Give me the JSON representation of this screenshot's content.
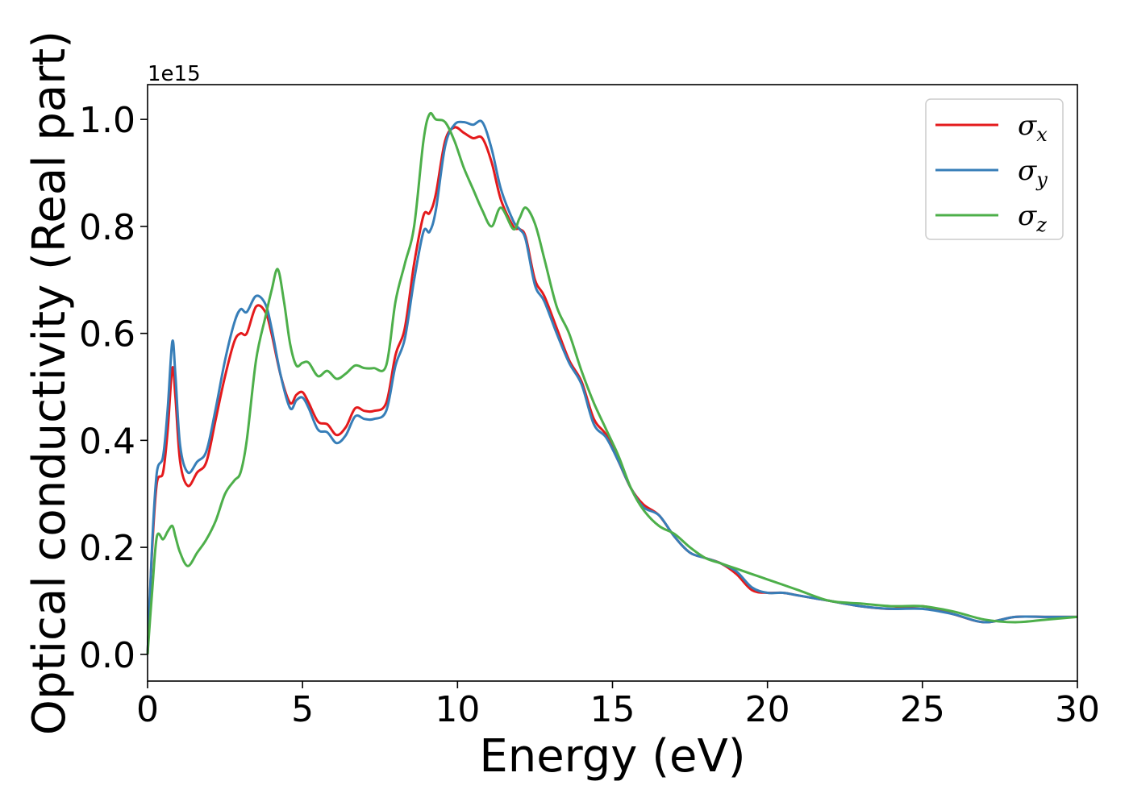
{
  "chart_data": {
    "type": "line",
    "xlabel": "Energy (eV)",
    "ylabel": "Optical conductivity (Real part)",
    "y_offset_label": "1e15",
    "xlim": [
      0,
      30
    ],
    "ylim": [
      -0.05,
      1.065
    ],
    "xticks": [
      0,
      5,
      10,
      15,
      20,
      25,
      30
    ],
    "xtick_labels": [
      "0",
      "5",
      "10",
      "15",
      "20",
      "25",
      "30"
    ],
    "yticks": [
      0.0,
      0.2,
      0.4,
      0.6,
      0.8,
      1.0
    ],
    "ytick_labels": [
      "0.0",
      "0.2",
      "0.4",
      "0.6",
      "0.8",
      "1.0"
    ],
    "grid": false,
    "legend_position": "top-right",
    "series": [
      {
        "name": "σx",
        "label_base": "σ",
        "label_sub": "x",
        "color": "#e41a1c",
        "x": [
          0,
          0.15,
          0.3,
          0.5,
          0.65,
          0.8,
          0.9,
          1.05,
          1.3,
          1.6,
          1.9,
          2.2,
          2.5,
          2.8,
          3.0,
          3.2,
          3.5,
          3.8,
          4.0,
          4.3,
          4.6,
          4.8,
          5.0,
          5.2,
          5.5,
          5.8,
          6.1,
          6.4,
          6.7,
          7.0,
          7.3,
          7.7,
          8.0,
          8.3,
          8.6,
          8.9,
          9.1,
          9.3,
          9.6,
          9.9,
          10.2,
          10.5,
          10.8,
          11.1,
          11.4,
          11.8,
          12.0,
          12.2,
          12.5,
          12.8,
          13.2,
          13.6,
          14.0,
          14.4,
          14.8,
          15.2,
          15.6,
          16.0,
          16.5,
          17.0,
          17.5,
          18.0,
          18.5,
          19.0,
          19.5,
          20.0,
          20.5,
          21.0,
          22.0,
          23.0,
          24.0,
          25.0,
          26.0,
          27.0,
          28.0,
          29.0,
          30.0
        ],
        "values": [
          0.0,
          0.2,
          0.32,
          0.34,
          0.42,
          0.535,
          0.48,
          0.36,
          0.315,
          0.34,
          0.36,
          0.44,
          0.52,
          0.585,
          0.6,
          0.6,
          0.65,
          0.64,
          0.6,
          0.52,
          0.47,
          0.485,
          0.49,
          0.47,
          0.435,
          0.43,
          0.41,
          0.425,
          0.46,
          0.455,
          0.455,
          0.47,
          0.56,
          0.61,
          0.73,
          0.82,
          0.825,
          0.86,
          0.96,
          0.985,
          0.975,
          0.965,
          0.965,
          0.92,
          0.85,
          0.8,
          0.795,
          0.78,
          0.7,
          0.67,
          0.61,
          0.55,
          0.51,
          0.44,
          0.41,
          0.36,
          0.31,
          0.28,
          0.26,
          0.22,
          0.19,
          0.18,
          0.17,
          0.15,
          0.12,
          0.115,
          0.115,
          0.11,
          0.1,
          0.09,
          0.085,
          0.09,
          0.075,
          0.06,
          0.07,
          0.07,
          0.07
        ]
      },
      {
        "name": "σy",
        "label_base": "σ",
        "label_sub": "y",
        "color": "#377eb8",
        "x": [
          0,
          0.15,
          0.3,
          0.5,
          0.65,
          0.8,
          0.9,
          1.05,
          1.3,
          1.6,
          1.9,
          2.2,
          2.5,
          2.8,
          3.0,
          3.2,
          3.5,
          3.8,
          4.0,
          4.3,
          4.6,
          4.8,
          5.0,
          5.2,
          5.5,
          5.8,
          6.1,
          6.4,
          6.7,
          7.0,
          7.3,
          7.7,
          8.0,
          8.3,
          8.6,
          8.9,
          9.1,
          9.3,
          9.6,
          9.9,
          10.2,
          10.5,
          10.8,
          11.1,
          11.4,
          11.8,
          12.0,
          12.2,
          12.5,
          12.8,
          13.2,
          13.6,
          14.0,
          14.4,
          14.8,
          15.2,
          15.6,
          16.0,
          16.5,
          17.0,
          17.5,
          18.0,
          18.5,
          19.0,
          19.5,
          20.0,
          20.5,
          21.0,
          22.0,
          23.0,
          24.0,
          25.0,
          26.0,
          27.0,
          28.0,
          29.0,
          30.0
        ],
        "values": [
          0.0,
          0.21,
          0.34,
          0.37,
          0.46,
          0.585,
          0.52,
          0.39,
          0.34,
          0.36,
          0.38,
          0.46,
          0.55,
          0.62,
          0.645,
          0.64,
          0.67,
          0.655,
          0.61,
          0.52,
          0.46,
          0.475,
          0.48,
          0.46,
          0.42,
          0.415,
          0.395,
          0.41,
          0.445,
          0.44,
          0.44,
          0.455,
          0.54,
          0.59,
          0.7,
          0.79,
          0.79,
          0.83,
          0.95,
          0.99,
          0.995,
          0.99,
          0.995,
          0.945,
          0.87,
          0.81,
          0.795,
          0.775,
          0.69,
          0.66,
          0.6,
          0.545,
          0.505,
          0.43,
          0.405,
          0.36,
          0.31,
          0.275,
          0.26,
          0.22,
          0.19,
          0.18,
          0.17,
          0.155,
          0.125,
          0.115,
          0.115,
          0.11,
          0.1,
          0.09,
          0.085,
          0.085,
          0.075,
          0.06,
          0.07,
          0.07,
          0.07
        ]
      },
      {
        "name": "σz",
        "label_base": "σ",
        "label_sub": "z",
        "color": "#4daf4a",
        "x": [
          0,
          0.15,
          0.3,
          0.5,
          0.65,
          0.8,
          0.9,
          1.05,
          1.3,
          1.6,
          1.9,
          2.2,
          2.5,
          2.8,
          3.0,
          3.2,
          3.5,
          3.8,
          4.0,
          4.2,
          4.4,
          4.6,
          4.8,
          5.0,
          5.2,
          5.5,
          5.8,
          6.1,
          6.4,
          6.7,
          7.0,
          7.3,
          7.7,
          8.0,
          8.3,
          8.6,
          8.9,
          9.1,
          9.3,
          9.6,
          9.9,
          10.2,
          10.5,
          10.8,
          11.1,
          11.4,
          11.8,
          12.0,
          12.2,
          12.5,
          12.8,
          13.2,
          13.6,
          14.0,
          14.4,
          14.8,
          15.2,
          15.6,
          16.0,
          16.5,
          17.0,
          17.5,
          18.0,
          18.5,
          19.0,
          19.5,
          20.0,
          20.5,
          21.0,
          22.0,
          23.0,
          24.0,
          25.0,
          26.0,
          27.0,
          28.0,
          29.0,
          30.0
        ],
        "values": [
          0.0,
          0.12,
          0.22,
          0.215,
          0.23,
          0.24,
          0.22,
          0.19,
          0.165,
          0.19,
          0.215,
          0.25,
          0.3,
          0.325,
          0.34,
          0.4,
          0.55,
          0.63,
          0.68,
          0.72,
          0.66,
          0.58,
          0.54,
          0.545,
          0.545,
          0.52,
          0.53,
          0.515,
          0.525,
          0.54,
          0.535,
          0.535,
          0.54,
          0.66,
          0.73,
          0.8,
          0.96,
          1.01,
          1.0,
          0.995,
          0.96,
          0.91,
          0.87,
          0.83,
          0.8,
          0.835,
          0.795,
          0.815,
          0.835,
          0.805,
          0.74,
          0.65,
          0.6,
          0.53,
          0.47,
          0.42,
          0.37,
          0.31,
          0.27,
          0.24,
          0.225,
          0.2,
          0.18,
          0.17,
          0.16,
          0.15,
          0.14,
          0.13,
          0.12,
          0.1,
          0.095,
          0.09,
          0.09,
          0.08,
          0.065,
          0.06,
          0.065,
          0.07
        ]
      }
    ]
  }
}
